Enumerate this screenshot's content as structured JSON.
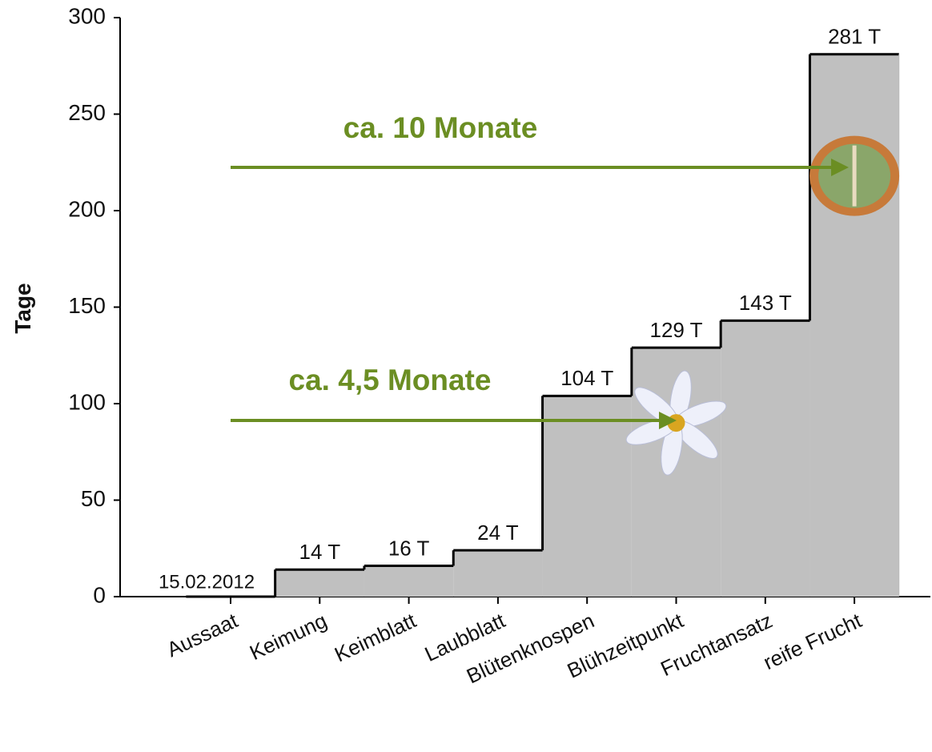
{
  "chart_data": {
    "type": "step-area",
    "y_label": "Tage",
    "categories": [
      "Aussaat",
      "Keimung",
      "Keimblatt",
      "Laubblatt",
      "Blütenknospen",
      "Blühzeitpunkt",
      "Fruchtansatz",
      "reife Frucht"
    ],
    "values": [
      0,
      14,
      16,
      24,
      104,
      129,
      143,
      281
    ],
    "value_labels": [
      null,
      "14 T",
      "16 T",
      "24 T",
      "104 T",
      "129 T",
      "143 T",
      "281 T"
    ],
    "start_label": "15.02.2012",
    "color": "#c0c0c0",
    "ylim": [
      0,
      300
    ],
    "yticks": [
      0,
      50,
      100,
      150,
      200,
      250,
      300
    ],
    "annotations": [
      {
        "text": "ca. 4,5 Monate",
        "color": "#6b8e23"
      },
      {
        "text": "ca. 10 Monate",
        "color": "#6b8e23"
      }
    ]
  }
}
